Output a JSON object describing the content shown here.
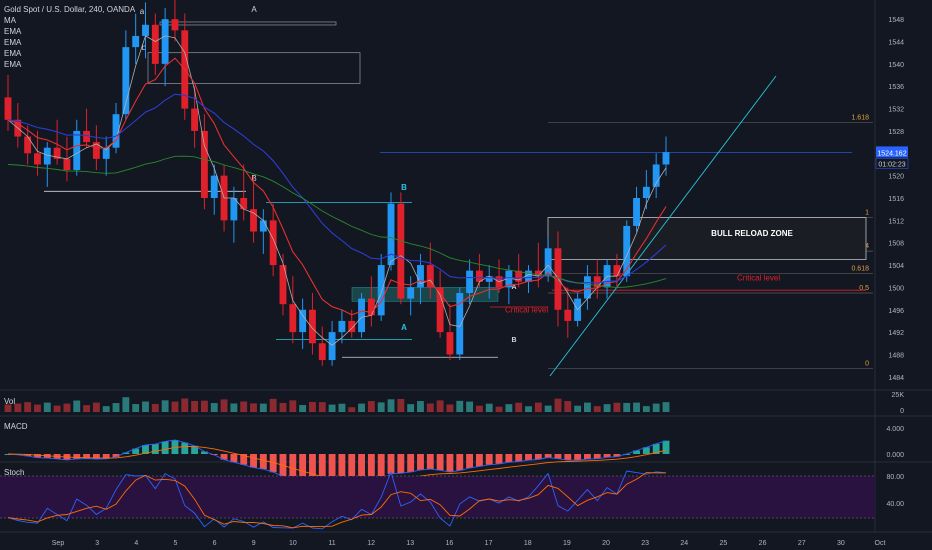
{
  "symbol": "Gold Spot / U.S. Dollar, 240, OANDA",
  "indicators": [
    "MA",
    "EMA",
    "EMA",
    "EMA",
    "EMA"
  ],
  "colors": {
    "bg": "#131722",
    "up": "#2196f3",
    "down": "#e0202a",
    "ma": "#b0b0b0",
    "ema_red": "#e52f2f",
    "ema_blue": "#2e3ccf",
    "ema_green": "#2a8a2a",
    "fib": "#5a5a5a",
    "trend": "#26c6da",
    "stoch_fill": "#2a1240"
  },
  "chart_data": {
    "type": "candlestick",
    "y_ticks": [
      1484,
      1488,
      1492,
      1496,
      1500,
      1504,
      1508,
      1512,
      1516,
      1520,
      1524,
      1528,
      1532,
      1536,
      1540,
      1544,
      1548
    ],
    "ylim": [
      1482,
      1550
    ],
    "x_ticks": [
      "Sep",
      "3",
      "4",
      "5",
      "6",
      "9",
      "10",
      "11",
      "12",
      "13",
      "16",
      "17",
      "18",
      "19",
      "20",
      "23",
      "24",
      "25",
      "26",
      "27",
      "30",
      "Oct"
    ],
    "last_price": "1524.162",
    "countdown": "01:02:23",
    "candles": [
      [
        1534,
        1538,
        1528,
        1530
      ],
      [
        1530,
        1533,
        1525,
        1527
      ],
      [
        1527,
        1529,
        1522,
        1524
      ],
      [
        1524,
        1528,
        1520,
        1522
      ],
      [
        1522,
        1526,
        1518,
        1525
      ],
      [
        1525,
        1530,
        1522,
        1523
      ],
      [
        1523,
        1527,
        1519,
        1521
      ],
      [
        1521,
        1530,
        1520,
        1528
      ],
      [
        1528,
        1532,
        1525,
        1526
      ],
      [
        1526,
        1529,
        1521,
        1523
      ],
      [
        1523,
        1527,
        1520,
        1525
      ],
      [
        1525,
        1533,
        1524,
        1531
      ],
      [
        1531,
        1546,
        1530,
        1543
      ],
      [
        1543,
        1549,
        1540,
        1545
      ],
      [
        1545,
        1551,
        1541,
        1547
      ],
      [
        1547,
        1549,
        1538,
        1540
      ],
      [
        1540,
        1550,
        1536,
        1548
      ],
      [
        1548,
        1552,
        1544,
        1546
      ],
      [
        1546,
        1549,
        1530,
        1532
      ],
      [
        1532,
        1536,
        1525,
        1528
      ],
      [
        1528,
        1531,
        1514,
        1516
      ],
      [
        1516,
        1522,
        1513,
        1520
      ],
      [
        1520,
        1522,
        1510,
        1512
      ],
      [
        1512,
        1518,
        1508,
        1516
      ],
      [
        1516,
        1522,
        1512,
        1514
      ],
      [
        1514,
        1520,
        1508,
        1510
      ],
      [
        1510,
        1514,
        1506,
        1512
      ],
      [
        1512,
        1515,
        1502,
        1504
      ],
      [
        1504,
        1506,
        1495,
        1497
      ],
      [
        1497,
        1502,
        1490,
        1492
      ],
      [
        1492,
        1498,
        1489,
        1496
      ],
      [
        1496,
        1499,
        1488,
        1490
      ],
      [
        1490,
        1493,
        1486,
        1487
      ],
      [
        1487,
        1494,
        1486,
        1492
      ],
      [
        1492,
        1496,
        1490,
        1494
      ],
      [
        1494,
        1496,
        1491,
        1492
      ],
      [
        1492,
        1499,
        1491,
        1498
      ],
      [
        1498,
        1502,
        1493,
        1495
      ],
      [
        1495,
        1506,
        1494,
        1504
      ],
      [
        1504,
        1517,
        1503,
        1515
      ],
      [
        1515,
        1517,
        1497,
        1498
      ],
      [
        1498,
        1502,
        1495,
        1500
      ],
      [
        1500,
        1506,
        1497,
        1504
      ],
      [
        1504,
        1508,
        1498,
        1500
      ],
      [
        1500,
        1503,
        1491,
        1492
      ],
      [
        1492,
        1497,
        1487,
        1488
      ],
      [
        1488,
        1500,
        1487,
        1499
      ],
      [
        1499,
        1505,
        1497,
        1503
      ],
      [
        1503,
        1506,
        1500,
        1501
      ],
      [
        1501,
        1504,
        1498,
        1502
      ],
      [
        1502,
        1505,
        1499,
        1500
      ],
      [
        1500,
        1504,
        1497,
        1503
      ],
      [
        1503,
        1506,
        1500,
        1501
      ],
      [
        1501,
        1504,
        1499,
        1503
      ],
      [
        1503,
        1508,
        1500,
        1502
      ],
      [
        1502,
        1509,
        1501,
        1507
      ],
      [
        1507,
        1510,
        1493,
        1496
      ],
      [
        1496,
        1500,
        1491,
        1494
      ],
      [
        1494,
        1499,
        1493,
        1498
      ],
      [
        1498,
        1504,
        1496,
        1502
      ],
      [
        1502,
        1505,
        1498,
        1500
      ],
      [
        1500,
        1505,
        1498,
        1504
      ],
      [
        1504,
        1506,
        1500,
        1502
      ],
      [
        1502,
        1512,
        1501,
        1511
      ],
      [
        1511,
        1518,
        1510,
        1516
      ],
      [
        1516,
        1521,
        1514,
        1518
      ],
      [
        1518,
        1524,
        1516,
        1522
      ],
      [
        1522,
        1527,
        1520,
        1524.2
      ]
    ],
    "volume_label": "25K",
    "macd_ticks": [
      "4.000",
      "0.000"
    ],
    "stoch_ticks": [
      "80.00",
      "40.00"
    ],
    "fib_levels": [
      {
        "label": "1.618",
        "value": 1529.5
      },
      {
        "label": "1",
        "value": 1512.5
      },
      {
        "label": "0.764",
        "value": 1506.5
      },
      {
        "label": "0.618",
        "value": 1502.5
      },
      {
        "label": "0.5",
        "value": 1499.0
      },
      {
        "label": "0",
        "value": 1485.5
      }
    ],
    "annotations": {
      "zone": "BULL RELOAD ZONE",
      "critical1": "Critical level",
      "critical2": "Critical level",
      "a_top": "A",
      "a_small": "a",
      "b_small": "b",
      "b1": "B",
      "b2": "B",
      "b3": "B",
      "a2": "A",
      "a3": "A"
    }
  }
}
